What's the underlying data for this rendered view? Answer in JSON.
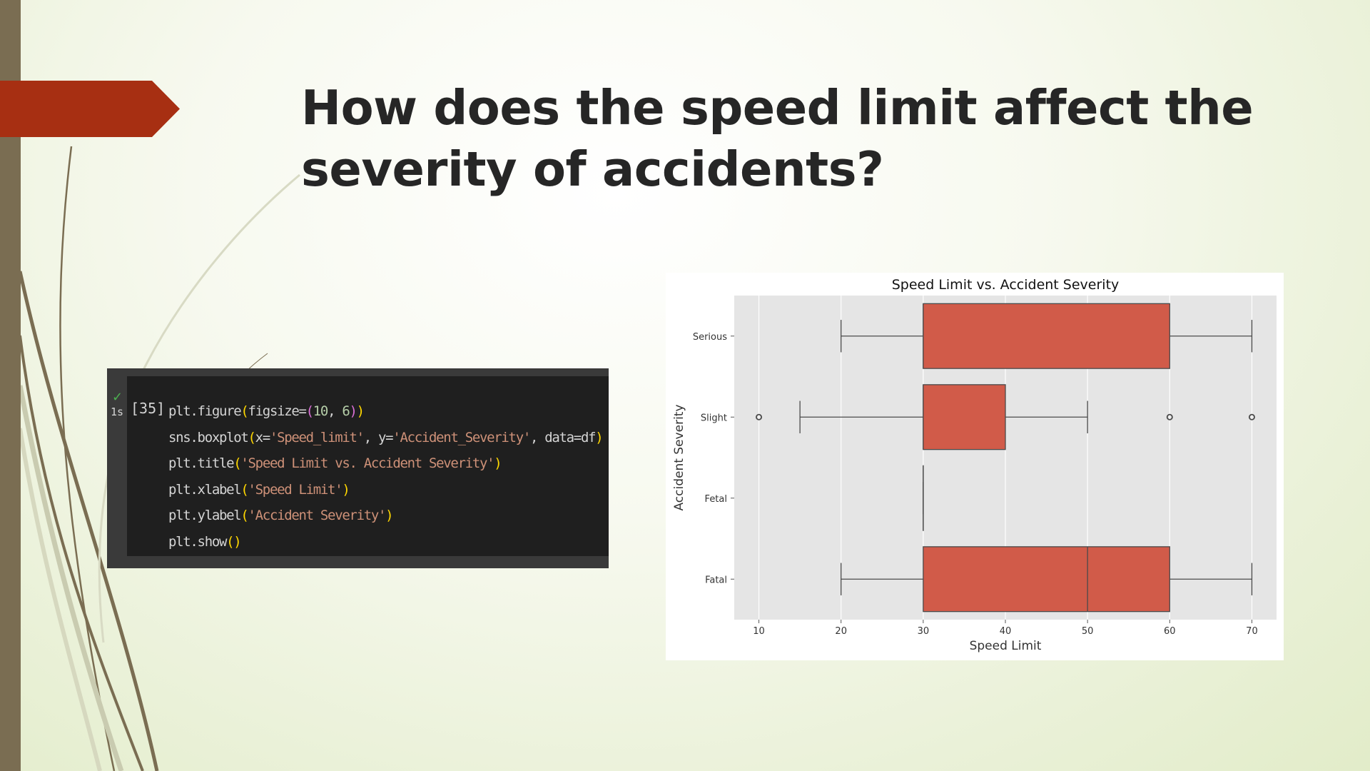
{
  "slide": {
    "title_lines": [
      "How does the speed limit affect the",
      "severity of accidents?"
    ]
  },
  "code_cell": {
    "execution_count": "[35]",
    "status": "✓",
    "run_time": "1s",
    "lines": [
      [
        {
          "t": "plt.figure",
          "c": "def"
        },
        {
          "t": "(",
          "c": "p1"
        },
        {
          "t": "figsize=",
          "c": "def"
        },
        {
          "t": "(",
          "c": "p2"
        },
        {
          "t": "10",
          "c": "num"
        },
        {
          "t": ", ",
          "c": "def"
        },
        {
          "t": "6",
          "c": "num"
        },
        {
          "t": ")",
          "c": "p2"
        },
        {
          "t": ")",
          "c": "p1"
        }
      ],
      [
        {
          "t": "sns.boxplot",
          "c": "def"
        },
        {
          "t": "(",
          "c": "p1"
        },
        {
          "t": "x=",
          "c": "def"
        },
        {
          "t": "'Speed_limit'",
          "c": "str"
        },
        {
          "t": ", y=",
          "c": "def"
        },
        {
          "t": "'Accident_Severity'",
          "c": "str"
        },
        {
          "t": ", data=df",
          "c": "def"
        },
        {
          "t": ")",
          "c": "p1"
        }
      ],
      [
        {
          "t": "plt.title",
          "c": "def"
        },
        {
          "t": "(",
          "c": "p1"
        },
        {
          "t": "'Speed Limit vs. Accident Severity'",
          "c": "str"
        },
        {
          "t": ")",
          "c": "p1"
        }
      ],
      [
        {
          "t": "plt.xlabel",
          "c": "def"
        },
        {
          "t": "(",
          "c": "p1"
        },
        {
          "t": "'Speed Limit'",
          "c": "str"
        },
        {
          "t": ")",
          "c": "p1"
        }
      ],
      [
        {
          "t": "plt.ylabel",
          "c": "def"
        },
        {
          "t": "(",
          "c": "p1"
        },
        {
          "t": "'Accident Severity'",
          "c": "str"
        },
        {
          "t": ")",
          "c": "p1"
        }
      ],
      [
        {
          "t": "plt.show",
          "c": "def"
        },
        {
          "t": "()",
          "c": "p1"
        }
      ]
    ]
  },
  "chart_data": {
    "type": "boxplot",
    "orientation": "horizontal",
    "title": "Speed Limit vs. Accident Severity",
    "xlabel": "Speed Limit",
    "ylabel": "Accident Severity",
    "xlim": [
      7,
      73
    ],
    "xticks": [
      10,
      20,
      30,
      40,
      50,
      60,
      70
    ],
    "grid": true,
    "box_color": "#d15b49",
    "categories": [
      "Serious",
      "Slight",
      "Fetal",
      "Fatal"
    ],
    "boxes": [
      {
        "category": "Serious",
        "whisker_low": 20,
        "q1": 30,
        "median": 30,
        "q3": 60,
        "whisker_high": 70,
        "outliers": []
      },
      {
        "category": "Slight",
        "whisker_low": 15,
        "q1": 30,
        "median": 30,
        "q3": 40,
        "whisker_high": 50,
        "outliers": [
          10,
          60,
          70
        ]
      },
      {
        "category": "Fetal",
        "whisker_low": 30,
        "q1": 30,
        "median": 30,
        "q3": 30,
        "whisker_high": 30,
        "outliers": []
      },
      {
        "category": "Fatal",
        "whisker_low": 20,
        "q1": 30,
        "median": 50,
        "q3": 60,
        "whisker_high": 70,
        "outliers": []
      }
    ]
  }
}
